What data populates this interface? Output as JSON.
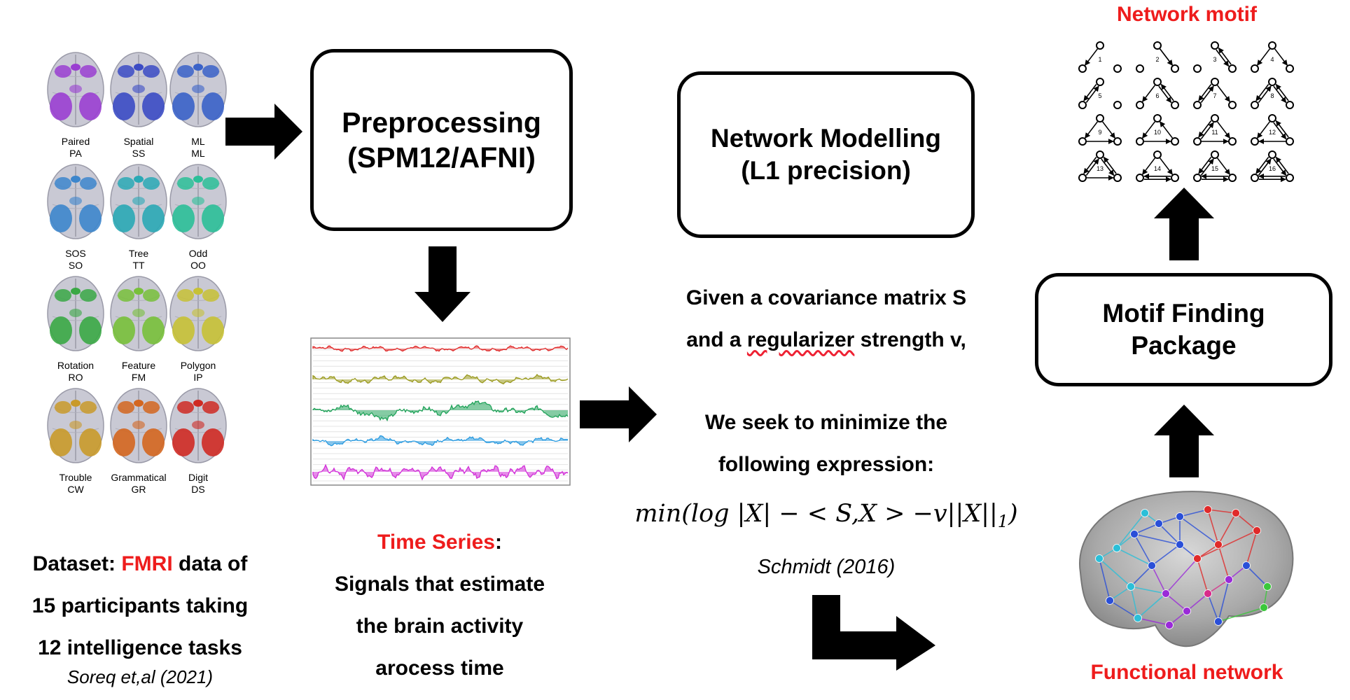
{
  "brain_tasks": [
    {
      "name": "Paired",
      "code": "PA",
      "color": "#9a3fd1"
    },
    {
      "name": "Spatial",
      "code": "SS",
      "color": "#3b4bc4"
    },
    {
      "name": "ML",
      "code": "ML",
      "color": "#3a62c8"
    },
    {
      "name": "SOS",
      "code": "SO",
      "color": "#3d86cc"
    },
    {
      "name": "Tree",
      "code": "TT",
      "color": "#2aa9b5"
    },
    {
      "name": "Odd",
      "code": "OO",
      "color": "#2bbf98"
    },
    {
      "name": "Rotation",
      "code": "RO",
      "color": "#3aa845"
    },
    {
      "name": "Feature",
      "code": "FM",
      "color": "#78c03a"
    },
    {
      "name": "Polygon",
      "code": "IP",
      "color": "#c7c135"
    },
    {
      "name": "Trouble",
      "code": "CW",
      "color": "#c99a2a"
    },
    {
      "name": "Grammatical",
      "code": "GR",
      "color": "#d4661f"
    },
    {
      "name": "Digit",
      "code": "DS",
      "color": "#cf2a23"
    }
  ],
  "dataset": {
    "prefix": "Dataset: ",
    "highlight": "FMRI",
    "line1_rest": " data of",
    "line2": "15 participants taking",
    "line3": "12 intelligence tasks",
    "citation": "Soreq et,al (2021)"
  },
  "preprocessing": {
    "line1": "Preprocessing",
    "line2": "(SPM12/AFNI)"
  },
  "time_series": {
    "title": "Time Series",
    "colon": ":",
    "line1": "Signals that estimate",
    "line2": "the brain activity",
    "line3": "arocess time",
    "signal_colors": [
      "#e02a2a",
      "#9a9a1e",
      "#21a35a",
      "#2a9be0",
      "#d22fd8"
    ]
  },
  "network_modelling": {
    "line1": "Network Modelling",
    "line2": "(L1 precision)"
  },
  "objective": {
    "line1": "Given a covariance matrix S",
    "line2_pre": "and a ",
    "line2_wavy": "regularizer",
    "line2_post": " strength v,",
    "line3": "We seek to minimize the",
    "line4": "following expression:",
    "formula": "min(log |X| − < S,X > −v||X||",
    "formula_sub": "1",
    "formula_end": ")",
    "citation": "Schmidt (2016)"
  },
  "functional_network": {
    "label": "Functional network"
  },
  "motif_finding": {
    "line1": "Motif Finding",
    "line2": "Package"
  },
  "network_motif": {
    "title": "Network motif",
    "numbers": [
      "1",
      "2",
      "3",
      "4",
      "5",
      "6",
      "7",
      "8",
      "9",
      "10",
      "11",
      "12",
      "13",
      "14",
      "15",
      "16"
    ]
  }
}
